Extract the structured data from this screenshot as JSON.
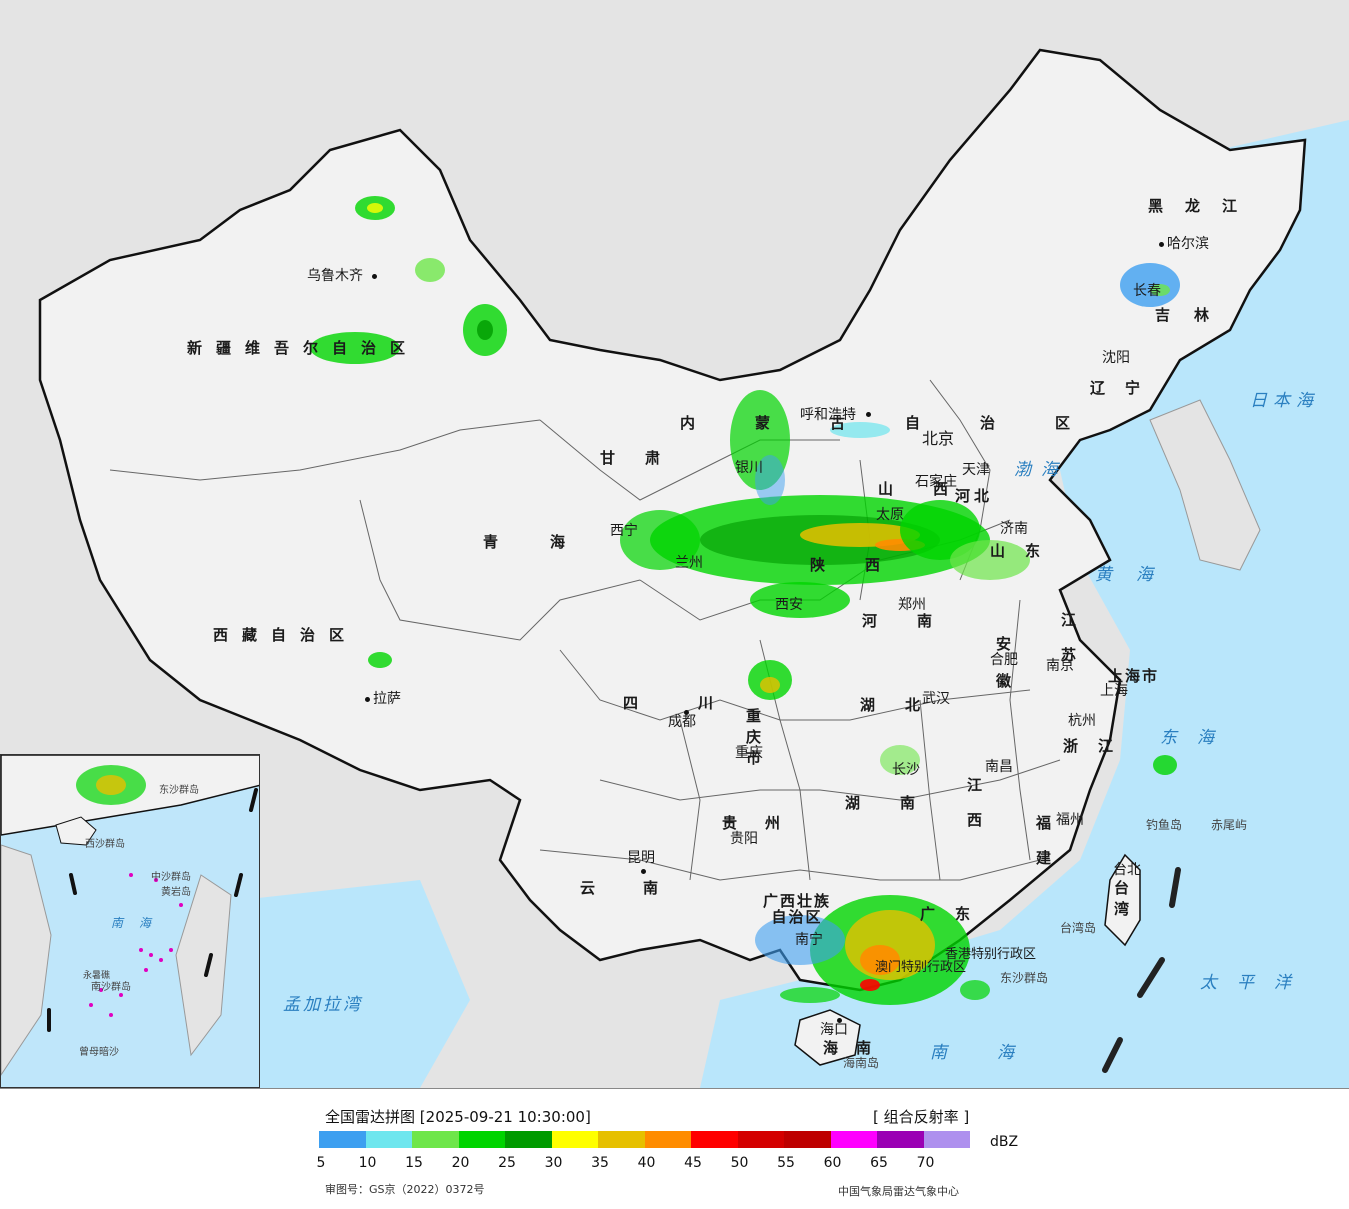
{
  "map": {
    "title": "全国雷达拼图",
    "timestamp": "[2025-09-21 10:30:00]",
    "product": "[ 组合反射率 ]",
    "unit": "dBZ",
    "approval_number": "审图号：GS京（2022）0372号",
    "credit": "中国气象局雷达气象中心",
    "color_scale": {
      "colors": [
        "#3d9ff0",
        "#6ee6ee",
        "#6ee64a",
        "#00d400",
        "#009a00",
        "#ffff00",
        "#e6c000",
        "#ff8c00",
        "#ff0000",
        "#d40000",
        "#be0000",
        "#ff00ff",
        "#9a00b4",
        "#ae90ee"
      ],
      "tick_labels": [
        "5",
        "10",
        "15",
        "20",
        "25",
        "30",
        "35",
        "40",
        "45",
        "50",
        "55",
        "60",
        "65",
        "70"
      ]
    },
    "regions": {
      "xinjiang": "新疆维吾尔自治区",
      "xizang": "西藏自治区",
      "qinghai": "青海",
      "gansu": "甘肃",
      "neimenggu": "内蒙古自治区",
      "heilongjiang": "黑龙江",
      "jilin": "吉林",
      "liaoning": "辽宁",
      "hebei": "河北",
      "shanxi": "山西",
      "shandong": "山东",
      "henan": "河南",
      "shaanxi": "陕西",
      "sichuan": "四川",
      "chongqing": "重庆市",
      "hubei": "湖北",
      "anhui": "安徽",
      "jiangsu": "江苏",
      "shanghai": "上海市",
      "zhejiang": "浙江",
      "jiangxi": "江西",
      "hunan": "湖南",
      "guizhou": "贵州",
      "yunnan": "云南",
      "guangxi": "广西壮族自治区",
      "guangdong": "广东",
      "fujian": "福建",
      "hainan": "海南",
      "taiwan": "台湾",
      "hongkong": "香港特别行政区",
      "macau": "澳门特别行政区"
    },
    "cities": {
      "urumqi": "乌鲁木齐",
      "lhasa": "拉萨",
      "xining": "西宁",
      "lanzhou": "兰州",
      "yinchuan": "银川",
      "hohhot": "呼和浩特",
      "beijing": "北京",
      "tianjin": "天津",
      "shijiazhuang": "石家庄",
      "taiyuan": "太原",
      "jinan": "济南",
      "zhengzhou": "郑州",
      "xian": "西安",
      "chengdu": "成都",
      "chongqing": "重庆",
      "wuhan": "武汉",
      "hefei": "合肥",
      "nanjing": "南京",
      "shanghai": "上海",
      "hangzhou": "杭州",
      "nanchang": "南昌",
      "changsha": "长沙",
      "guiyang": "贵阳",
      "kunming": "昆明",
      "nanning": "南宁",
      "fuzhou": "福州",
      "haikou": "海口",
      "taipei": "台北",
      "harbin": "哈尔滨",
      "changchun": "长春",
      "shenyang": "沈阳"
    },
    "islands": {
      "diaoyu": "钓鱼岛",
      "chiwei": "赤尾屿",
      "taiwan_island": "台湾岛",
      "dongsha": "东沙群岛",
      "hainan_island": "海南岛"
    },
    "seas": {
      "bohai": "渤海",
      "huanghai": "黄海",
      "donghai": "东海",
      "nanhai": "南海",
      "taipingyang": "太平洋",
      "ribenhai": "日本海",
      "mengjialawan": "孟加拉湾"
    },
    "inset": {
      "nanhai": "南海",
      "dongsha": "东沙群岛",
      "xisha": "西沙群岛",
      "zhongsha": "中沙群岛",
      "huangyan": "黄岩岛",
      "nansha": "南沙群岛",
      "zengmu": "曾母暗沙",
      "yongshu": "永暑礁"
    }
  }
}
